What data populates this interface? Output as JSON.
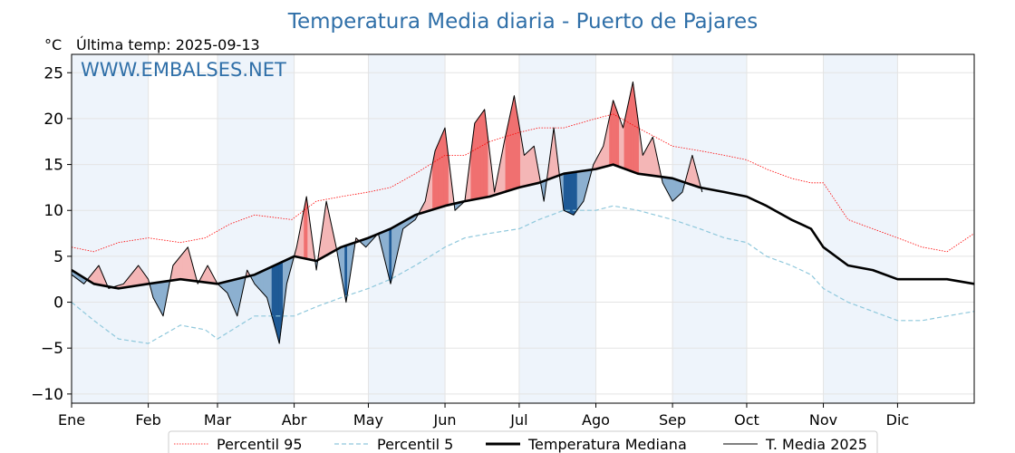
{
  "chart_data": {
    "type": "line",
    "title": "Temperatura Media diaria - Puerto de Pajares",
    "subtitle": "Última temp: 2025-09-13",
    "unit_label": "°C",
    "watermark": "WWW.EMBALSES.NET",
    "ylim": [
      -11,
      27
    ],
    "yticks": [
      25,
      20,
      15,
      10,
      5,
      0,
      -5,
      -10
    ],
    "ytick_labels": [
      "25",
      "20",
      "15",
      "10",
      "5",
      "0",
      "−5",
      "−10"
    ],
    "xlim": [
      1,
      366
    ],
    "month_labels": [
      "Ene",
      "Feb",
      "Mar",
      "Abr",
      "May",
      "Jun",
      "Jul",
      "Ago",
      "Sep",
      "Oct",
      "Nov",
      "Dic"
    ],
    "month_starts": [
      1,
      32,
      60,
      91,
      121,
      152,
      182,
      213,
      244,
      274,
      305,
      335
    ],
    "grid": true,
    "legend_position": "bottom-center",
    "colors": {
      "p95": "#ff0000",
      "p5": "#8fc8dc",
      "median": "#000000",
      "mean2025": "#000000",
      "above_fill": "#f4b6b6",
      "above_strong": "#f07070",
      "below_fill": "#8cb0d0",
      "below_strong": "#1f5a96",
      "shade": "#eef4fb",
      "title": "#2f6fa8",
      "watermark": "#2f6fa8"
    },
    "series": [
      {
        "key": "p95",
        "name": "Percentil 95",
        "style": "dotted",
        "x": [
          1,
          10,
          20,
          32,
          45,
          55,
          65,
          75,
          90,
          100,
          110,
          121,
          130,
          140,
          152,
          160,
          170,
          182,
          190,
          200,
          213,
          220,
          230,
          244,
          255,
          265,
          274,
          282,
          292,
          300,
          305,
          315,
          325,
          335,
          345,
          355,
          366
        ],
        "values": [
          6,
          5.5,
          6.5,
          7,
          6.5,
          7,
          8.5,
          9.5,
          9,
          11,
          11.5,
          12,
          12.5,
          14,
          16,
          16,
          17.5,
          18.5,
          19,
          19,
          20,
          20.5,
          19,
          17,
          16.5,
          16,
          15.5,
          14.5,
          13.5,
          13,
          13,
          9,
          8,
          7,
          6,
          5.5,
          7.5
        ]
      },
      {
        "key": "p5",
        "name": "Percentil 5",
        "style": "dashed",
        "x": [
          1,
          10,
          20,
          32,
          45,
          55,
          60,
          75,
          91,
          100,
          110,
          121,
          130,
          140,
          152,
          160,
          170,
          182,
          190,
          200,
          213,
          220,
          230,
          244,
          255,
          265,
          274,
          282,
          292,
          300,
          305,
          315,
          325,
          335,
          345,
          355,
          366
        ],
        "values": [
          0,
          -2,
          -4,
          -4.5,
          -2.5,
          -3,
          -4,
          -1.5,
          -1.5,
          -0.5,
          0.5,
          1.5,
          2.5,
          4,
          6,
          7,
          7.5,
          8,
          9,
          10,
          10,
          10.5,
          10,
          9,
          8,
          7,
          6.5,
          5,
          4,
          3,
          1.5,
          0,
          -1,
          -2,
          -2,
          -1.5,
          -1
        ]
      },
      {
        "key": "median",
        "name": "Temperatura Mediana",
        "style": "solid-thick",
        "x": [
          1,
          10,
          20,
          32,
          45,
          60,
          75,
          91,
          100,
          110,
          121,
          130,
          140,
          152,
          160,
          170,
          182,
          190,
          200,
          213,
          220,
          230,
          244,
          255,
          265,
          274,
          282,
          292,
          300,
          305,
          315,
          325,
          335,
          345,
          355,
          366
        ],
        "values": [
          3.5,
          2,
          1.5,
          2,
          2.5,
          2,
          3,
          5,
          4.5,
          6,
          7,
          8,
          9.5,
          10.5,
          11,
          11.5,
          12.5,
          13,
          14,
          14.5,
          15,
          14,
          13.5,
          12.5,
          12,
          11.5,
          10.5,
          9,
          8,
          6,
          4,
          3.5,
          2.5,
          2.5,
          2.5,
          2
        ]
      },
      {
        "key": "mean2025",
        "name": "T. Media 2025",
        "style": "solid-thin",
        "x": [
          1,
          6,
          12,
          16,
          22,
          28,
          32,
          34,
          38,
          42,
          48,
          52,
          56,
          60,
          64,
          68,
          72,
          75,
          80,
          85,
          88,
          92,
          96,
          100,
          104,
          108,
          112,
          116,
          120,
          125,
          130,
          135,
          140,
          144,
          148,
          152,
          156,
          160,
          164,
          168,
          172,
          176,
          180,
          184,
          188,
          192,
          196,
          200,
          204,
          208,
          212,
          216,
          220,
          224,
          228,
          232,
          236,
          240,
          244,
          248,
          252,
          256
        ],
        "values": [
          3,
          2,
          4,
          1.5,
          2,
          4,
          2.5,
          0.5,
          -1.5,
          4,
          6,
          2,
          4,
          2,
          1,
          -1.5,
          3.5,
          2,
          0.5,
          -4.5,
          2,
          6,
          11.5,
          3.5,
          11,
          6,
          0,
          7,
          6,
          7.5,
          2,
          8,
          9,
          11,
          16.5,
          19,
          10,
          11,
          19.5,
          21,
          12,
          17.5,
          22.5,
          16,
          17,
          11,
          19,
          10,
          9.5,
          11,
          15,
          17,
          22,
          19,
          24,
          16,
          18,
          13,
          11,
          12,
          16,
          12
        ]
      }
    ]
  }
}
